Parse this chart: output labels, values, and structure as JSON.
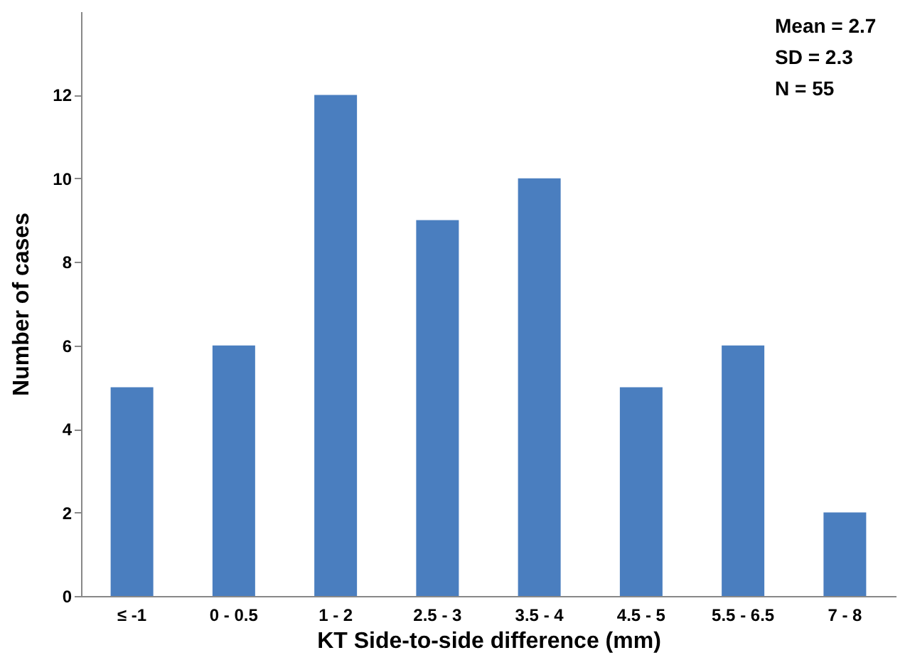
{
  "chart_data": {
    "type": "bar",
    "categories": [
      "≤ -1",
      "0 - 0.5",
      "1 - 2",
      "2.5 - 3",
      "3.5 - 4",
      "4.5 - 5",
      "5.5 - 6.5",
      "7 - 8"
    ],
    "values": [
      5,
      6,
      12,
      9,
      10,
      5,
      6,
      2
    ],
    "color": "#4a7ebf",
    "xlabel": "KT Side-to-side difference (mm)",
    "ylabel": "Number of cases",
    "ylim": [
      0,
      14
    ],
    "yticks": [
      0,
      2,
      4,
      6,
      8,
      10,
      12
    ],
    "annotations": [
      "Mean = 2.7",
      "SD = 2.3",
      "N = 55"
    ]
  }
}
